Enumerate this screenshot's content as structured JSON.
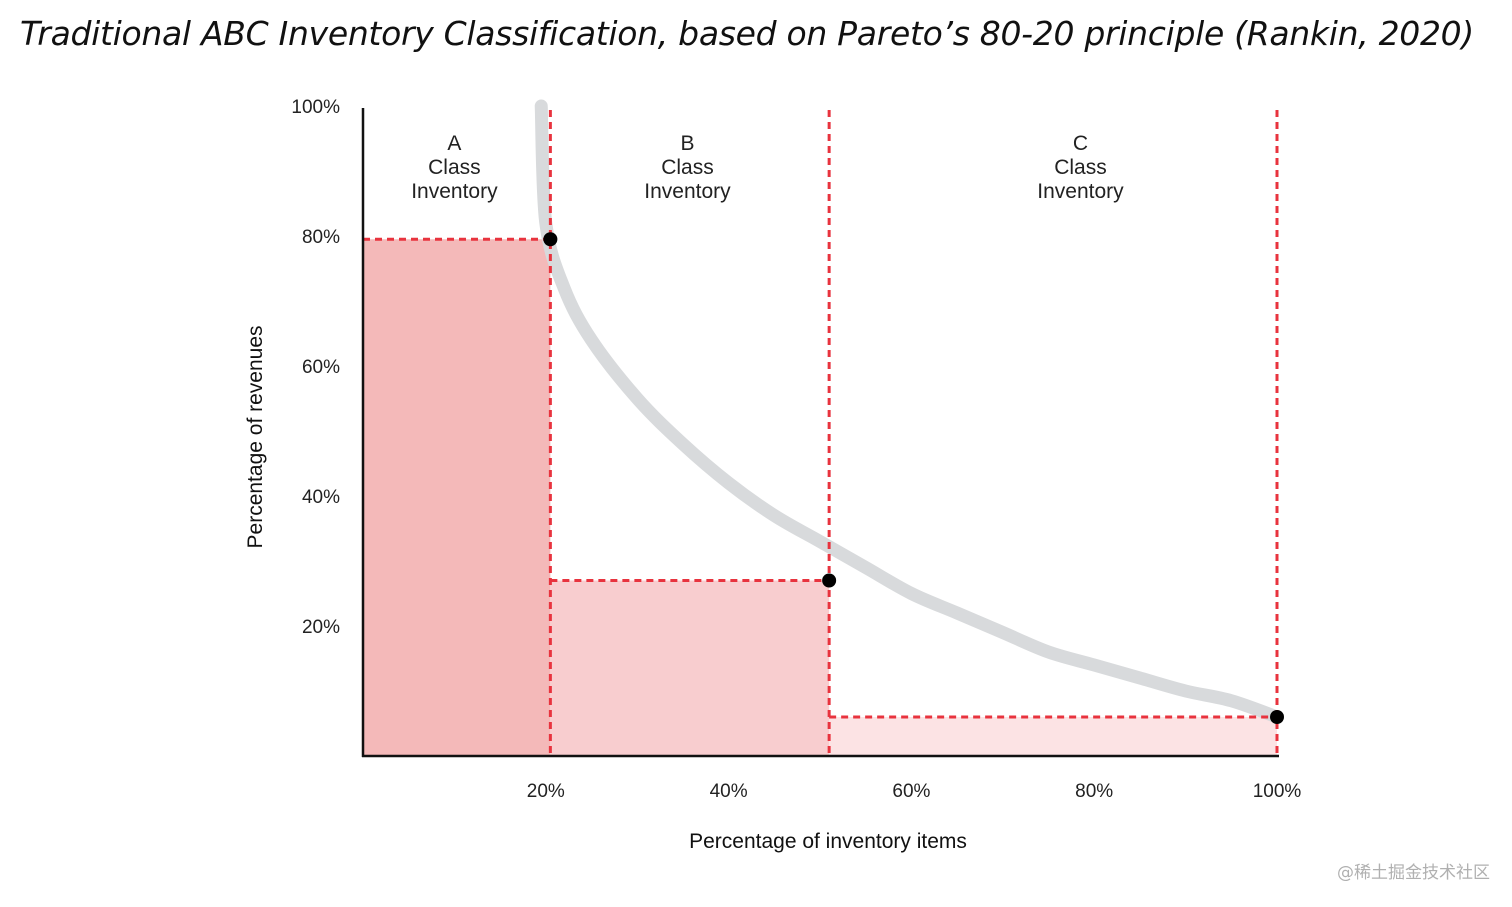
{
  "title": "Traditional ABC Inventory Classification, based on Pareto’s 80-20 principle (Rankin, 2020)",
  "watermark": "@稀土掘金技术社区",
  "colors": {
    "curve": "#d8dadc",
    "boundary": "#e8333e",
    "point": "#000000",
    "axis": "#111111",
    "fill_a": "#f4b9b9",
    "fill_b": "#f8cdcf",
    "fill_c": "#fce3e4"
  },
  "chart_data": {
    "type": "area",
    "xlabel": "Percentage of inventory items",
    "ylabel": "Percentage of revenues",
    "xlim": [
      0,
      100
    ],
    "ylim": [
      0,
      100
    ],
    "x_ticks": [
      {
        "value": 20,
        "label": "20%"
      },
      {
        "value": 40,
        "label": "40%"
      },
      {
        "value": 60,
        "label": "60%"
      },
      {
        "value": 80,
        "label": "80%"
      },
      {
        "value": 100,
        "label": "100%"
      }
    ],
    "y_ticks": [
      {
        "value": 20,
        "label": "20%"
      },
      {
        "value": 40,
        "label": "40%"
      },
      {
        "value": 60,
        "label": "60%"
      },
      {
        "value": 80,
        "label": "80%"
      },
      {
        "value": 100,
        "label": "100%"
      }
    ],
    "curve": {
      "x": [
        19.5,
        20,
        22,
        25,
        30,
        35,
        40,
        45,
        50,
        55,
        60,
        65,
        70,
        75,
        80,
        85,
        90,
        95,
        100
      ],
      "y": [
        100,
        82,
        72,
        64,
        55,
        48,
        42,
        37,
        33,
        29,
        25,
        22,
        19,
        16,
        14,
        12,
        10,
        8.5,
        6
      ]
    },
    "classes": [
      {
        "letter": "A",
        "line2": "Class",
        "line3": "Inventory",
        "x_start": 0,
        "x_end": 20.5,
        "y": 79.5,
        "label_x": 10
      },
      {
        "letter": "B",
        "line2": "Class",
        "line3": "Inventory",
        "x_start": 20.5,
        "x_end": 51,
        "y": 27,
        "label_x": 35.5
      },
      {
        "letter": "C",
        "line2": "Class",
        "line3": "Inventory",
        "x_start": 51,
        "x_end": 100,
        "y": 6,
        "label_x": 78.5
      }
    ],
    "points": [
      {
        "x": 20.5,
        "y": 79.5
      },
      {
        "x": 51,
        "y": 27
      },
      {
        "x": 100,
        "y": 6
      }
    ],
    "grid": false,
    "legend": "none"
  }
}
